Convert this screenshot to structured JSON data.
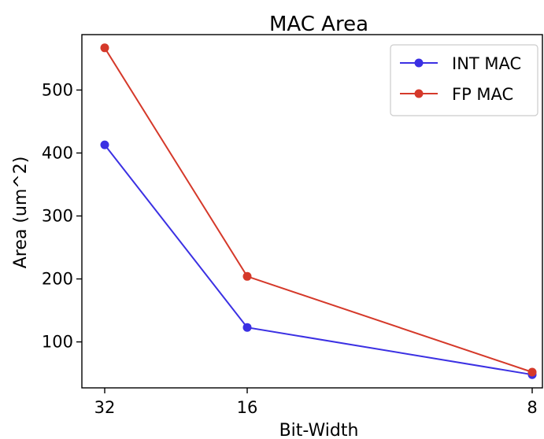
{
  "chart_data": {
    "type": "line",
    "title": "MAC Area",
    "xlabel": "Bit-Width",
    "ylabel": "Area (um^2)",
    "x_ticks": [
      "32",
      "16",
      "8"
    ],
    "x_scale": "reciprocal",
    "y_ticks": [
      100,
      200,
      300,
      400,
      500
    ],
    "ylim": [
      27,
      588
    ],
    "grid": false,
    "legend_position": "top-right",
    "series": [
      {
        "name": "INT MAC",
        "color": "#3b30e3",
        "x": [
          32,
          16,
          8
        ],
        "values": [
          413,
          123,
          48
        ]
      },
      {
        "name": "FP MAC",
        "color": "#d5392a",
        "x": [
          32,
          16,
          8
        ],
        "values": [
          567,
          204,
          52
        ]
      }
    ]
  }
}
